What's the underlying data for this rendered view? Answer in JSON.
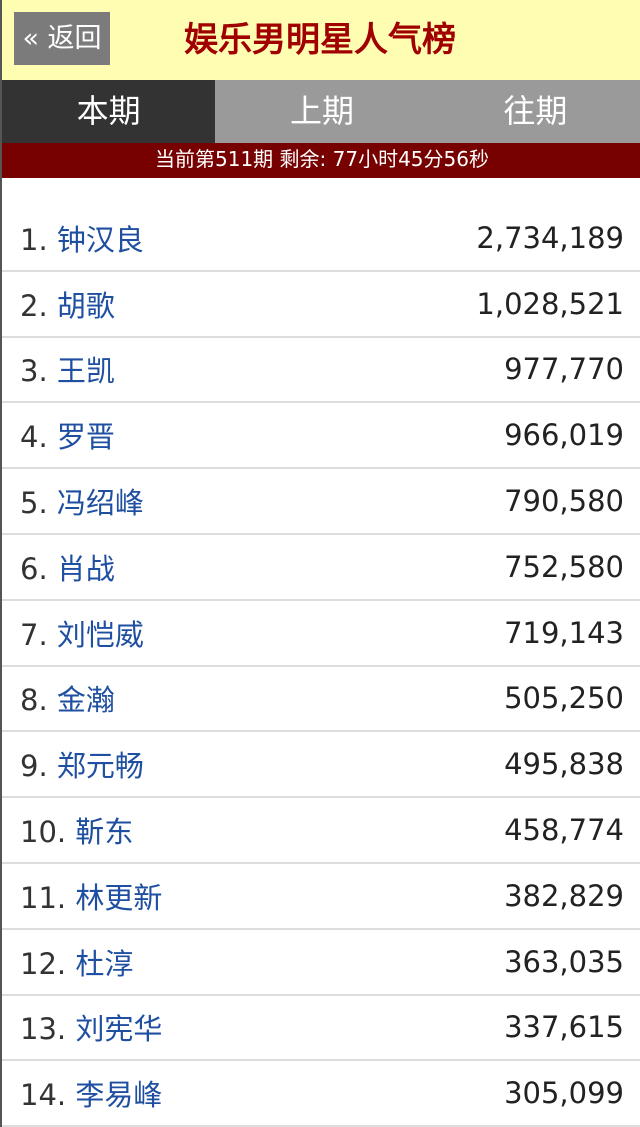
{
  "header": {
    "back_label": "« 返回",
    "title": "娱乐男明星人气榜"
  },
  "tabs": [
    {
      "label": "本期",
      "active": true
    },
    {
      "label": "上期",
      "active": false
    },
    {
      "label": "往期",
      "active": false
    }
  ],
  "status": "当前第511期 剩余: 77小时45分56秒",
  "rows": [
    {
      "rank": "1.",
      "name": "钟汉良",
      "votes": "2,734,189"
    },
    {
      "rank": "2.",
      "name": "胡歌",
      "votes": "1,028,521"
    },
    {
      "rank": "3.",
      "name": "王凯",
      "votes": "977,770"
    },
    {
      "rank": "4.",
      "name": "罗晋",
      "votes": "966,019"
    },
    {
      "rank": "5.",
      "name": "冯绍峰",
      "votes": "790,580"
    },
    {
      "rank": "6.",
      "name": "肖战",
      "votes": "752,580"
    },
    {
      "rank": "7.",
      "name": "刘恺威",
      "votes": "719,143"
    },
    {
      "rank": "8.",
      "name": "金瀚",
      "votes": "505,250"
    },
    {
      "rank": "9.",
      "name": "郑元畅",
      "votes": "495,838"
    },
    {
      "rank": "10.",
      "name": "靳东",
      "votes": "458,774"
    },
    {
      "rank": "11.",
      "name": "林更新",
      "votes": "382,829"
    },
    {
      "rank": "12.",
      "name": "杜淳",
      "votes": "363,035"
    },
    {
      "rank": "13.",
      "name": "刘宪华",
      "votes": "337,615"
    },
    {
      "rank": "14.",
      "name": "李易峰",
      "votes": "305,099"
    }
  ]
}
